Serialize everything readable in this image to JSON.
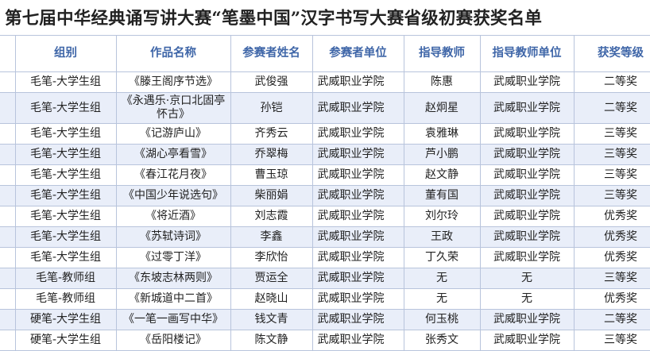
{
  "title": "第七届中华经典诵写讲大赛“笔墨中国”汉字书写大赛省级初赛获奖名单",
  "table": {
    "headers": [
      "组别",
      "作品名称",
      "参赛者姓名",
      "参赛者单位",
      "指导教师",
      "指导教师单位",
      "获奖等级"
    ],
    "rows": [
      [
        "毛笔-大学生组",
        "《滕王阁序节选》",
        "武俊强",
        "武威职业学院",
        "陈惠",
        "武威职业学院",
        "二等奖"
      ],
      [
        "毛笔-大学生组",
        "《永遇乐·京口北固亭怀古》",
        "孙铠",
        "武威职业学院",
        "赵炯星",
        "武威职业学院",
        "二等奖"
      ],
      [
        "毛笔-大学生组",
        "《记游庐山》",
        "齐秀云",
        "武威职业学院",
        "袁雅琳",
        "武威职业学院",
        "三等奖"
      ],
      [
        "毛笔-大学生组",
        "《湖心亭看雪》",
        "乔翠梅",
        "武威职业学院",
        "芦小鹏",
        "武威职业学院",
        "三等奖"
      ],
      [
        "毛笔-大学生组",
        "《春江花月夜》",
        "曹玉琼",
        "武威职业学院",
        "赵文静",
        "武威职业学院",
        "三等奖"
      ],
      [
        "毛笔-大学生组",
        "《中国少年说选句》",
        "柴丽娟",
        "武威职业学院",
        "董有国",
        "武威职业学院",
        "三等奖"
      ],
      [
        "毛笔-大学生组",
        "《将近酒》",
        "刘志霞",
        "武威职业学院",
        "刘尔玲",
        "武威职业学院",
        "优秀奖"
      ],
      [
        "毛笔-大学生组",
        "《苏轼诗词》",
        "李鑫",
        "武威职业学院",
        "王政",
        "武威职业学院",
        "优秀奖"
      ],
      [
        "毛笔-大学生组",
        "《过零丁洋》",
        "李欣怡",
        "武威职业学院",
        "丁久荣",
        "武威职业学院",
        "优秀奖"
      ],
      [
        "毛笔-教师组",
        "《东坡志林两则》",
        "贾运全",
        "武威职业学院",
        "无",
        "无",
        "三等奖"
      ],
      [
        "毛笔-教师组",
        "《新城道中二首》",
        "赵晓山",
        "武威职业学院",
        "无",
        "无",
        "优秀奖"
      ],
      [
        "硬笔-大学生组",
        "《一笔一画写中华》",
        "钱文青",
        "武威职业学院",
        "何玉桃",
        "武威职业学院",
        "二等奖"
      ],
      [
        "硬笔-大学生组",
        "《岳阳楼记》",
        "陈文静",
        "武威职业学院",
        "张秀文",
        "武威职业学院",
        "三等奖"
      ]
    ]
  }
}
